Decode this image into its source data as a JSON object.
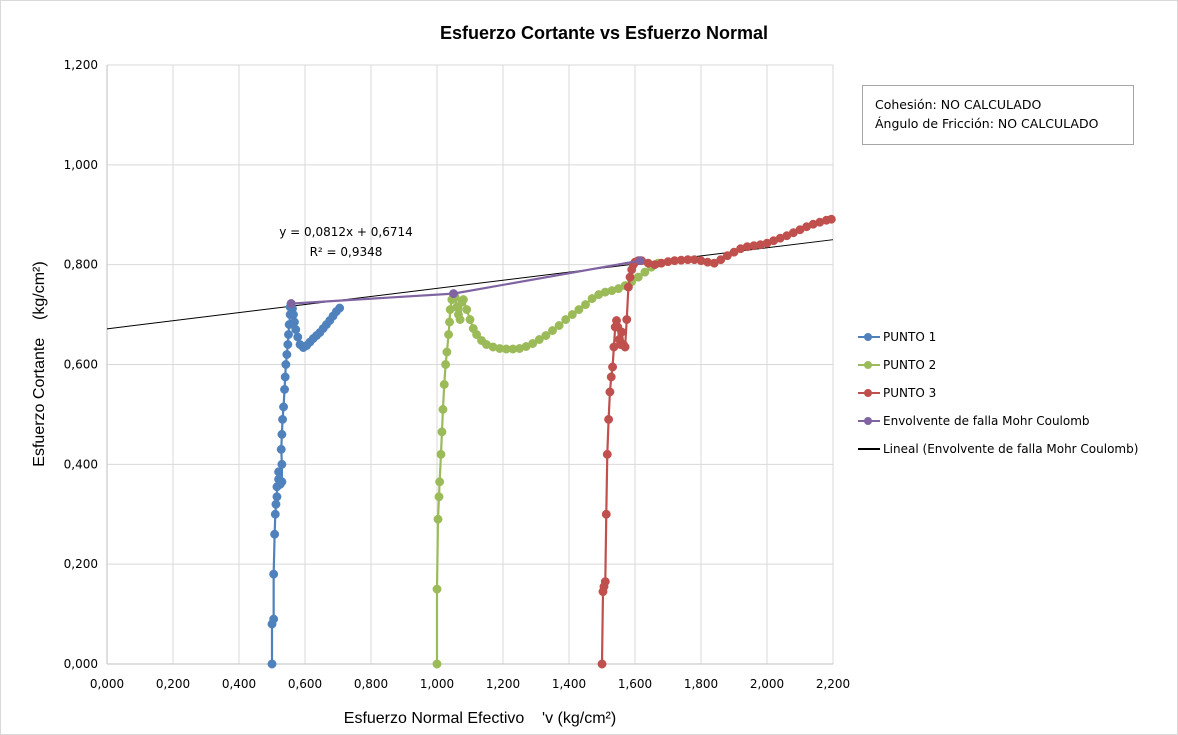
{
  "chart_data": {
    "type": "scatter",
    "title": "Esfuerzo Cortante vs Esfuerzo Normal",
    "xlabel": "Esfuerzo Normal Efectivo    'v (kg/cm²)",
    "ylabel": "Esfuerzo Cortante    (kg/cm²)",
    "xlim": [
      0,
      2.2
    ],
    "ylim": [
      0,
      1.2
    ],
    "x_ticks": [
      "0,000",
      "0,200",
      "0,400",
      "0,600",
      "0,800",
      "1,000",
      "1,200",
      "1,400",
      "1,600",
      "1,800",
      "2,000",
      "2,200"
    ],
    "y_ticks": [
      "0,000",
      "0,200",
      "0,400",
      "0,600",
      "0,800",
      "1,000",
      "1,200"
    ],
    "grid": true,
    "legend_position": "right",
    "series": [
      {
        "name": "PUNTO 1",
        "color": "#4f81bd",
        "points": [
          [
            0.5,
            0.0
          ],
          [
            0.5,
            0.08
          ],
          [
            0.505,
            0.09
          ],
          [
            0.505,
            0.18
          ],
          [
            0.508,
            0.26
          ],
          [
            0.51,
            0.3
          ],
          [
            0.512,
            0.32
          ],
          [
            0.515,
            0.335
          ],
          [
            0.515,
            0.355
          ],
          [
            0.52,
            0.37
          ],
          [
            0.52,
            0.385
          ],
          [
            0.525,
            0.36
          ],
          [
            0.53,
            0.365
          ],
          [
            0.53,
            0.4
          ],
          [
            0.528,
            0.43
          ],
          [
            0.53,
            0.46
          ],
          [
            0.532,
            0.49
          ],
          [
            0.535,
            0.515
          ],
          [
            0.538,
            0.55
          ],
          [
            0.54,
            0.575
          ],
          [
            0.542,
            0.6
          ],
          [
            0.545,
            0.62
          ],
          [
            0.548,
            0.64
          ],
          [
            0.55,
            0.66
          ],
          [
            0.552,
            0.68
          ],
          [
            0.555,
            0.7
          ],
          [
            0.555,
            0.715
          ],
          [
            0.558,
            0.722
          ],
          [
            0.562,
            0.712
          ],
          [
            0.565,
            0.7
          ],
          [
            0.568,
            0.685
          ],
          [
            0.572,
            0.67
          ],
          [
            0.578,
            0.655
          ],
          [
            0.585,
            0.64
          ],
          [
            0.595,
            0.634
          ],
          [
            0.605,
            0.638
          ],
          [
            0.615,
            0.645
          ],
          [
            0.625,
            0.652
          ],
          [
            0.635,
            0.658
          ],
          [
            0.645,
            0.664
          ],
          [
            0.655,
            0.672
          ],
          [
            0.665,
            0.68
          ],
          [
            0.675,
            0.688
          ],
          [
            0.685,
            0.697
          ],
          [
            0.695,
            0.706
          ],
          [
            0.705,
            0.713
          ]
        ]
      },
      {
        "name": "PUNTO 2",
        "color": "#9bbb59",
        "points": [
          [
            1.0,
            0.0
          ],
          [
            1.0,
            0.15
          ],
          [
            1.003,
            0.29
          ],
          [
            1.006,
            0.335
          ],
          [
            1.008,
            0.365
          ],
          [
            1.012,
            0.42
          ],
          [
            1.015,
            0.465
          ],
          [
            1.018,
            0.51
          ],
          [
            1.022,
            0.56
          ],
          [
            1.026,
            0.6
          ],
          [
            1.03,
            0.625
          ],
          [
            1.035,
            0.66
          ],
          [
            1.038,
            0.685
          ],
          [
            1.04,
            0.71
          ],
          [
            1.045,
            0.73
          ],
          [
            1.05,
            0.74
          ],
          [
            1.055,
            0.735
          ],
          [
            1.06,
            0.715
          ],
          [
            1.065,
            0.7
          ],
          [
            1.07,
            0.69
          ],
          [
            1.075,
            0.725
          ],
          [
            1.08,
            0.73
          ],
          [
            1.09,
            0.71
          ],
          [
            1.1,
            0.69
          ],
          [
            1.11,
            0.672
          ],
          [
            1.12,
            0.66
          ],
          [
            1.135,
            0.648
          ],
          [
            1.15,
            0.64
          ],
          [
            1.17,
            0.635
          ],
          [
            1.19,
            0.632
          ],
          [
            1.21,
            0.631
          ],
          [
            1.23,
            0.631
          ],
          [
            1.25,
            0.632
          ],
          [
            1.27,
            0.636
          ],
          [
            1.29,
            0.642
          ],
          [
            1.31,
            0.65
          ],
          [
            1.33,
            0.658
          ],
          [
            1.35,
            0.668
          ],
          [
            1.37,
            0.678
          ],
          [
            1.39,
            0.69
          ],
          [
            1.41,
            0.7
          ],
          [
            1.43,
            0.71
          ],
          [
            1.45,
            0.72
          ],
          [
            1.47,
            0.732
          ],
          [
            1.49,
            0.74
          ],
          [
            1.51,
            0.745
          ],
          [
            1.53,
            0.748
          ],
          [
            1.55,
            0.752
          ],
          [
            1.57,
            0.758
          ],
          [
            1.59,
            0.766
          ],
          [
            1.61,
            0.775
          ],
          [
            1.63,
            0.785
          ],
          [
            1.65,
            0.795
          ],
          [
            1.67,
            0.803
          ]
        ]
      },
      {
        "name": "PUNTO 3",
        "color": "#c0504d",
        "points": [
          [
            1.5,
            0.0
          ],
          [
            1.503,
            0.145
          ],
          [
            1.506,
            0.155
          ],
          [
            1.51,
            0.165
          ],
          [
            1.513,
            0.3
          ],
          [
            1.516,
            0.42
          ],
          [
            1.52,
            0.49
          ],
          [
            1.524,
            0.545
          ],
          [
            1.528,
            0.575
          ],
          [
            1.532,
            0.595
          ],
          [
            1.536,
            0.635
          ],
          [
            1.54,
            0.675
          ],
          [
            1.544,
            0.688
          ],
          [
            1.548,
            0.675
          ],
          [
            1.552,
            0.65
          ],
          [
            1.556,
            0.64
          ],
          [
            1.56,
            0.665
          ],
          [
            1.565,
            0.64
          ],
          [
            1.57,
            0.635
          ],
          [
            1.575,
            0.69
          ],
          [
            1.58,
            0.755
          ],
          [
            1.585,
            0.775
          ],
          [
            1.59,
            0.79
          ],
          [
            1.595,
            0.8
          ],
          [
            1.6,
            0.805
          ],
          [
            1.61,
            0.808
          ],
          [
            1.62,
            0.808
          ],
          [
            1.64,
            0.803
          ],
          [
            1.66,
            0.8
          ],
          [
            1.68,
            0.803
          ],
          [
            1.7,
            0.806
          ],
          [
            1.72,
            0.808
          ],
          [
            1.74,
            0.809
          ],
          [
            1.76,
            0.81
          ],
          [
            1.78,
            0.81
          ],
          [
            1.8,
            0.808
          ],
          [
            1.82,
            0.805
          ],
          [
            1.84,
            0.803
          ],
          [
            1.86,
            0.81
          ],
          [
            1.88,
            0.818
          ],
          [
            1.9,
            0.825
          ],
          [
            1.92,
            0.832
          ],
          [
            1.94,
            0.836
          ],
          [
            1.96,
            0.838
          ],
          [
            1.98,
            0.84
          ],
          [
            2.0,
            0.843
          ],
          [
            2.02,
            0.848
          ],
          [
            2.04,
            0.853
          ],
          [
            2.06,
            0.858
          ],
          [
            2.08,
            0.864
          ],
          [
            2.1,
            0.87
          ],
          [
            2.12,
            0.876
          ],
          [
            2.14,
            0.881
          ],
          [
            2.16,
            0.885
          ],
          [
            2.18,
            0.889
          ],
          [
            2.195,
            0.891
          ]
        ]
      },
      {
        "name": "Envolvente de falla Mohr Coulomb",
        "color": "#8064a2",
        "points": [
          [
            0.558,
            0.722
          ],
          [
            1.05,
            0.742
          ],
          [
            1.615,
            0.808
          ]
        ]
      }
    ],
    "trendline": {
      "name": "Lineal (Envolvente de falla Mohr Coulomb)",
      "color": "#000000",
      "slope": 0.0812,
      "intercept": 0.6714,
      "equation": "y = 0,0812x + 0,6714",
      "r2": "R² = 0,9348"
    }
  },
  "note": {
    "line1": "Cohesión: NO CALCULADO",
    "line2": "Ángulo de Fricción: NO CALCULADO"
  },
  "legend": {
    "items": [
      {
        "label": "PUNTO 1",
        "color": "#4f81bd",
        "marker": true
      },
      {
        "label": "PUNTO 2",
        "color": "#9bbb59",
        "marker": true
      },
      {
        "label": "PUNTO 3",
        "color": "#c0504d",
        "marker": true
      },
      {
        "label": "Envolvente de falla Mohr Coulomb",
        "color": "#8064a2",
        "marker": true
      },
      {
        "label": "Lineal (Envolvente de falla Mohr Coulomb)",
        "color": "#000000",
        "marker": false
      }
    ]
  }
}
